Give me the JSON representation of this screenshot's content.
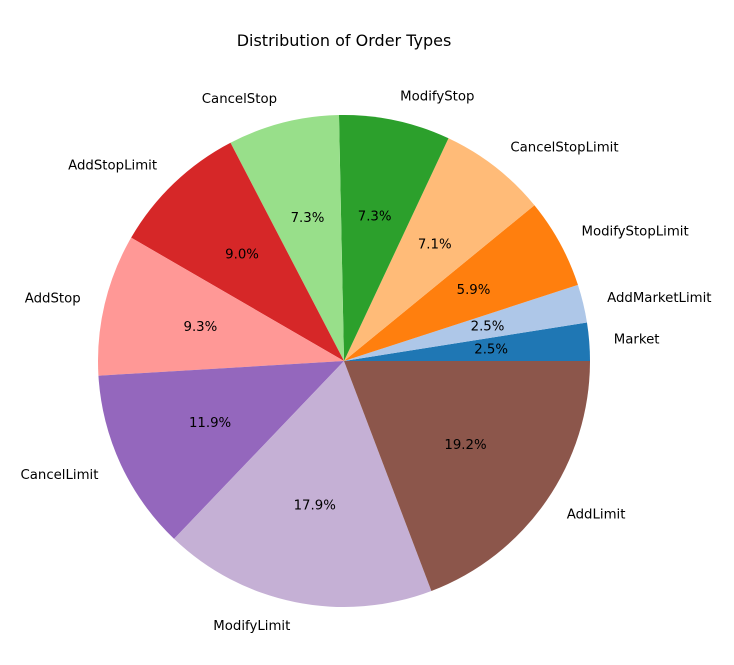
{
  "chart_data": {
    "type": "pie",
    "title": "Distribution of Order Types",
    "start_angle_deg": 0,
    "direction": "counterclockwise",
    "center": [
      344,
      361
    ],
    "radius": 246,
    "categories": [
      "Market",
      "AddMarketLimit",
      "ModifyStopLimit",
      "CancelStopLimit",
      "ModifyStop",
      "CancelStop",
      "AddStopLimit",
      "AddStop",
      "CancelLimit",
      "ModifyLimit",
      "AddLimit"
    ],
    "values": [
      2.5,
      2.5,
      5.9,
      7.1,
      7.3,
      7.3,
      9.0,
      9.3,
      11.9,
      17.9,
      19.2
    ],
    "labels_pct": [
      "2.5%",
      "2.5%",
      "5.9%",
      "7.1%",
      "7.3%",
      "7.3%",
      "9.0%",
      "9.3%",
      "11.9%",
      "17.9%",
      "19.2%"
    ],
    "colors": [
      "#1f77b4",
      "#aec7e8",
      "#ff7f0e",
      "#ffbb78",
      "#2ca02c",
      "#98df8a",
      "#d62728",
      "#ff9896",
      "#9467bd",
      "#c5b0d5",
      "#8c564b"
    ],
    "legend": null,
    "xlabel": "",
    "ylabel": ""
  }
}
